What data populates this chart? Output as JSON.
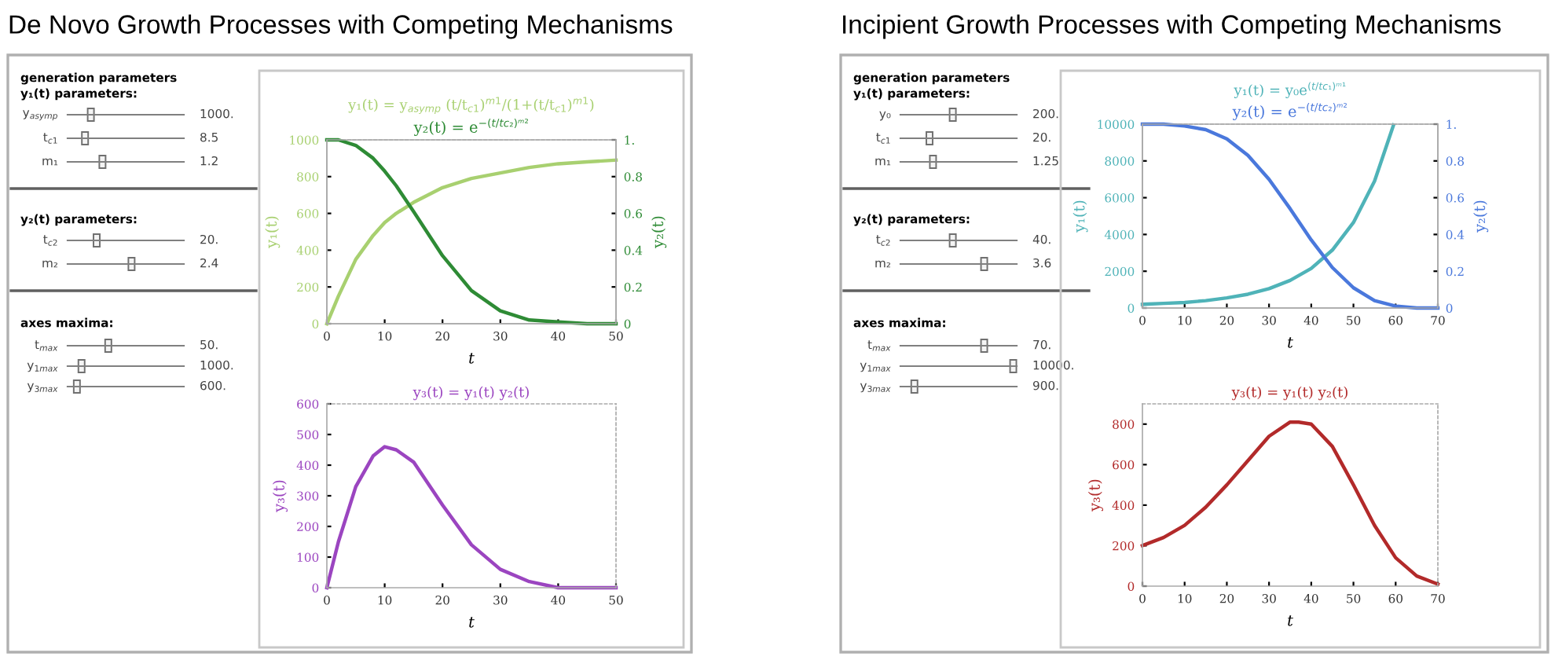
{
  "chart_data": [
    {
      "type": "other",
      "title": "De Novo Growth Processes with Competing Mechanisms",
      "annotations": [
        "generation parameters",
        "y₁(t) parameters:",
        "y$_{asymp}$",
        "1000.",
        "t$_{c1}$",
        "8.5",
        "m₁",
        "1.2",
        "y₂(t) parameters:",
        "t$_{c2}$",
        "20.",
        "m₂",
        "2.4",
        "axes maxima:",
        "t$_{max}$",
        "50.",
        "y$_{1max}$",
        "1000.",
        "y$_{3max}$",
        "600."
      ]
    },
    {
      "type": "line",
      "title": "y₁(t) = y$_{asymp}$ (t/t$_{c1}$)$^{m1}$/(1+(t/t$_{c1}$)$^{m1}$)",
      "subtitle": "y₂(t) = e$^{−(t/tc₂)ᵐ²}$",
      "xlabel": "t",
      "ylabel": "y₁(t)",
      "y2label": "y₂(t)",
      "x": [
        0,
        2,
        5,
        8,
        10,
        12,
        15,
        20,
        25,
        30,
        35,
        40,
        45,
        50
      ],
      "series": [
        {
          "color": "#a8d070",
          "values": [
            0,
            150,
            350,
            480,
            550,
            600,
            660,
            740,
            790,
            820,
            850,
            870,
            880,
            890
          ]
        },
        {
          "color": "#2e8b35",
          "axis": "y2",
          "values": [
            1,
            1,
            0.97,
            0.9,
            0.83,
            0.75,
            0.61,
            0.37,
            0.18,
            0.07,
            0.02,
            0.01,
            0,
            0
          ]
        }
      ],
      "xlim": [
        0,
        50
      ],
      "xticks": [
        0,
        10,
        20,
        30,
        40,
        50
      ],
      "ylim": [
        0,
        1000
      ],
      "yticks": [
        0,
        200,
        400,
        600,
        800,
        1000
      ],
      "y2lim": [
        0,
        1
      ],
      "y2ticks": [
        0,
        0.2,
        0.4,
        0.6,
        0.8,
        {
          "value": 1,
          "label": "1."
        }
      ],
      "grid": false,
      "legend": false
    },
    {
      "type": "line",
      "title": "y₃(t) = y₁(t) y₂(t)",
      "xlabel": "t",
      "ylabel": "y₃(t)",
      "x": [
        0,
        2,
        5,
        8,
        10,
        12,
        15,
        20,
        25,
        30,
        35,
        40,
        45,
        50
      ],
      "series": [
        {
          "color": "#9b45c0",
          "values": [
            0,
            150,
            330,
            430,
            460,
            450,
            410,
            270,
            140,
            60,
            20,
            0,
            0,
            0
          ]
        }
      ],
      "xlim": [
        0,
        50
      ],
      "xticks": [
        0,
        10,
        20,
        30,
        40,
        50
      ],
      "ylim": [
        0,
        600
      ],
      "yticks": [
        0,
        100,
        200,
        300,
        400,
        500,
        600
      ],
      "grid": false,
      "legend": false
    },
    {
      "type": "other",
      "title": "Incipient Growth Processes with Competing Mechanisms",
      "annotations": [
        "generation parameters",
        "y₁(t) parameters:",
        "y₀",
        "200.",
        "t$_{c1}$",
        "20.",
        "m₁",
        "1.25",
        "y₂(t) parameters:",
        "t$_{c2}$",
        "40.",
        "m₂",
        "3.6",
        "axes maxima:",
        "t$_{max}$",
        "70.",
        "y$_{1max}$",
        "10000.",
        "y$_{3max}$",
        "900."
      ]
    },
    {
      "type": "line",
      "title": "y₁(t) = y₀e$^{(t/tc₁)ᵐ¹}$",
      "subtitle": "y₂(t) = e$^{−(t/tc₂)ᵐ²}$",
      "xlabel": "t",
      "ylabel": "y₁(t)",
      "y2label": "y₂(t)",
      "x": [
        0,
        5,
        10,
        15,
        20,
        25,
        30,
        35,
        40,
        45,
        50,
        55,
        60,
        65,
        70
      ],
      "series": [
        {
          "color": "#4fb3b8",
          "x": [
            0,
            5,
            10,
            15,
            20,
            25,
            30,
            35,
            40,
            45,
            50,
            55,
            59.5
          ],
          "values": [
            200,
            250,
            300,
            400,
            550,
            750,
            1050,
            1500,
            2150,
            3150,
            4650,
            6900,
            9950
          ]
        },
        {
          "color": "#4a78dc",
          "axis": "y2",
          "values": [
            1,
            1,
            0.99,
            0.97,
            0.92,
            0.83,
            0.7,
            0.54,
            0.37,
            0.22,
            0.11,
            0.04,
            0.01,
            0,
            0
          ]
        }
      ],
      "xlim": [
        0,
        70
      ],
      "xticks": [
        0,
        10,
        20,
        30,
        40,
        50,
        60,
        70
      ],
      "ylim": [
        0,
        10000
      ],
      "yticks": [
        0,
        2000,
        4000,
        6000,
        8000,
        10000
      ],
      "y2lim": [
        0,
        1
      ],
      "y2ticks": [
        0,
        0.2,
        0.4,
        0.6,
        0.8,
        {
          "value": 1,
          "label": "1."
        }
      ],
      "grid": false,
      "legend": false
    },
    {
      "type": "line",
      "title": "y₃(t) = y₁(t) y₂(t)",
      "xlabel": "t",
      "ylabel": "y₃(t)",
      "x": [
        0,
        5,
        10,
        15,
        20,
        25,
        30,
        35,
        37,
        40,
        45,
        50,
        55,
        60,
        65,
        70
      ],
      "series": [
        {
          "color": "#b22a2a",
          "values": [
            200,
            240,
            300,
            390,
            500,
            620,
            740,
            810,
            810,
            800,
            690,
            500,
            300,
            140,
            50,
            10
          ]
        }
      ],
      "xlim": [
        0,
        70
      ],
      "xticks": [
        0,
        10,
        20,
        30,
        40,
        50,
        60,
        70
      ],
      "ylim": [
        0,
        900
      ],
      "yticks": [
        0,
        200,
        400,
        600,
        800
      ],
      "grid": false,
      "legend": false
    }
  ]
}
